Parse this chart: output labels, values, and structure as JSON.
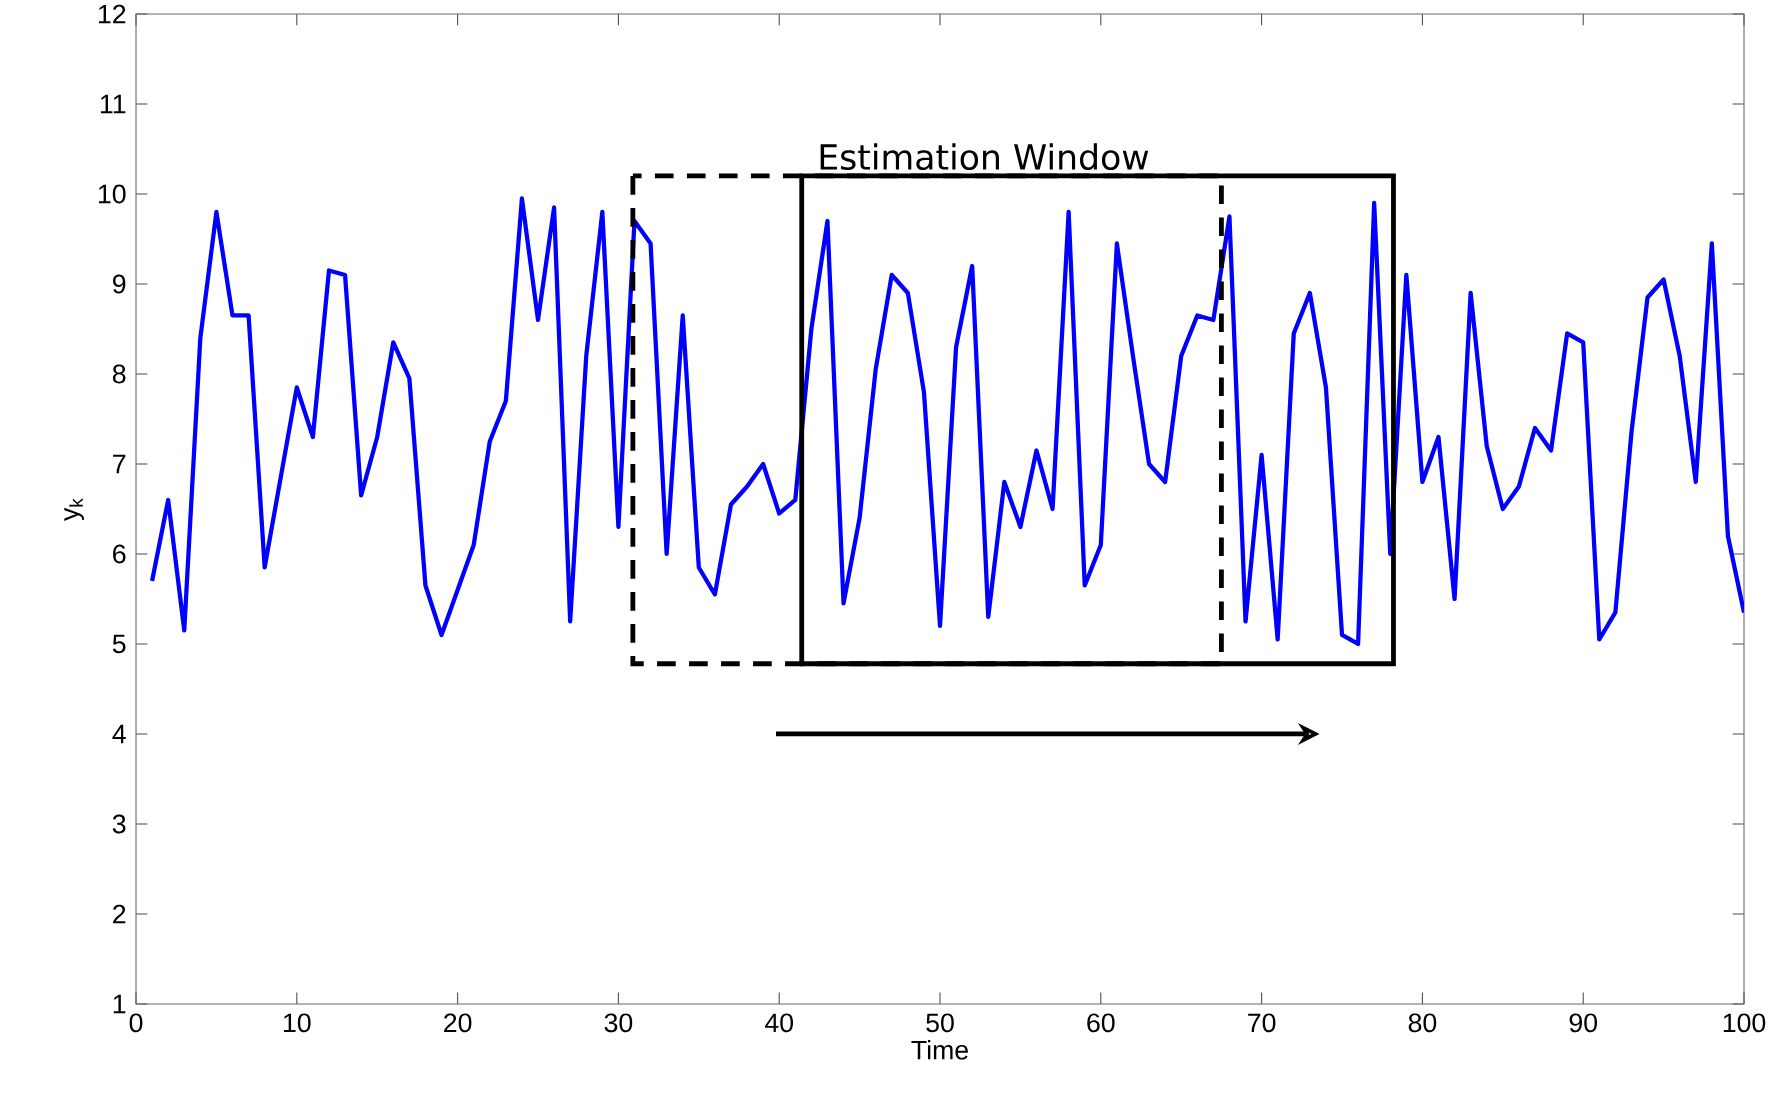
{
  "chart_data": {
    "type": "line",
    "xlabel": "Time",
    "ylabel": "y$_{k}$",
    "annotations": [
      "Estimation Window"
    ],
    "series": [
      {
        "color": "#0000ff",
        "x": [
          1,
          2,
          3,
          4,
          5,
          6,
          7,
          8,
          9,
          10,
          11,
          12,
          13,
          14,
          15,
          16,
          17,
          18,
          19,
          20,
          21,
          22,
          23,
          24,
          25,
          26,
          27,
          28,
          29,
          30,
          31,
          32,
          33,
          34,
          35,
          36,
          37,
          38,
          39,
          40,
          41,
          42,
          43,
          44,
          45,
          46,
          47,
          48,
          49,
          50,
          51,
          52,
          53,
          54,
          55,
          56,
          57,
          58,
          59,
          60,
          61,
          62,
          63,
          64,
          65,
          66,
          67,
          68,
          69,
          70,
          71,
          72,
          73,
          74,
          75,
          76,
          77,
          78,
          79,
          80,
          81,
          82,
          83,
          84,
          85,
          86,
          87,
          88,
          89,
          90,
          91,
          92,
          93,
          94,
          95,
          96,
          97,
          98,
          99,
          100
        ],
        "values": [
          5.7,
          6.6,
          5.15,
          8.4,
          9.8,
          8.65,
          8.65,
          5.85,
          6.85,
          7.85,
          7.3,
          9.15,
          9.1,
          6.65,
          7.3,
          8.35,
          7.95,
          5.65,
          5.1,
          5.6,
          6.1,
          7.25,
          7.7,
          9.95,
          8.6,
          9.85,
          5.25,
          8.2,
          9.8,
          6.3,
          9.7,
          9.45,
          6.0,
          8.65,
          5.85,
          5.55,
          6.55,
          6.75,
          7.0,
          6.45,
          6.6,
          8.5,
          9.7,
          5.45,
          6.4,
          8.05,
          9.1,
          8.9,
          7.8,
          5.2,
          8.3,
          9.2,
          5.3,
          6.8,
          6.3,
          7.15,
          6.5,
          9.8,
          5.65,
          6.1,
          9.45,
          8.2,
          7.0,
          6.8,
          8.2,
          8.65,
          8.6,
          9.75,
          5.25,
          7.1,
          5.05,
          8.45,
          8.9,
          7.85,
          5.1,
          5.0,
          9.9,
          6.0,
          9.1,
          6.8,
          7.3,
          5.5,
          8.9,
          7.2,
          6.5,
          6.75,
          7.4,
          7.15,
          8.45,
          8.35,
          5.05,
          5.35,
          7.35,
          8.85,
          9.05,
          8.2,
          6.8,
          9.45,
          6.2,
          5.35
        ]
      }
    ],
    "xlim": [
      0,
      100
    ],
    "ylim": [
      1,
      12
    ],
    "xticks": [
      0,
      10,
      20,
      30,
      40,
      50,
      60,
      70,
      80,
      90,
      100
    ],
    "yticks": [
      1,
      2,
      3,
      4,
      5,
      6,
      7,
      8,
      9,
      10,
      11,
      12
    ],
    "grid": false,
    "marker": "none",
    "line_style": "solid"
  }
}
